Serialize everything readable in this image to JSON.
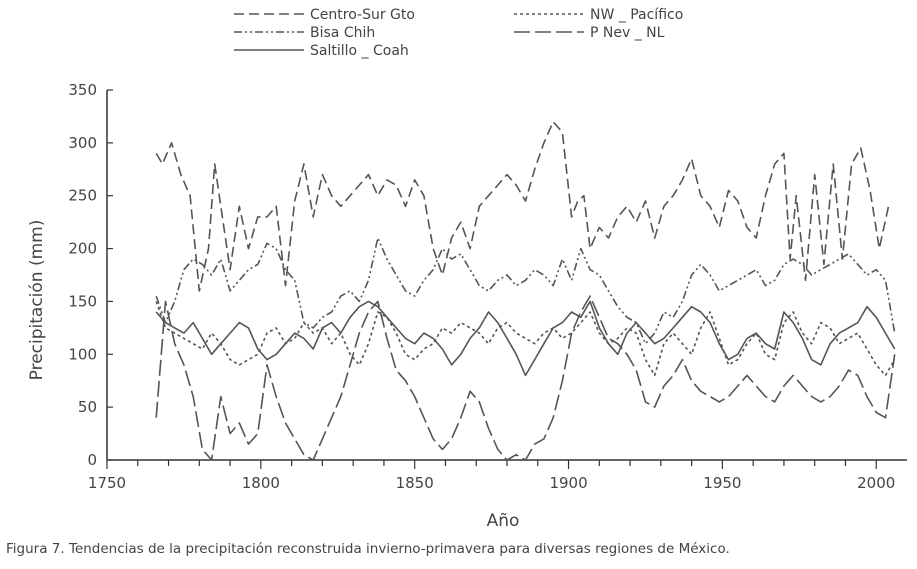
{
  "chart_data": {
    "type": "line",
    "xlabel": "Año",
    "ylabel": "Precipitación (mm)",
    "xlim": [
      1750,
      2010
    ],
    "ylim": [
      0,
      350
    ],
    "xticks": [
      1750,
      1800,
      1850,
      1900,
      1950,
      2000
    ],
    "yticks": [
      0,
      50,
      100,
      150,
      200,
      250,
      300,
      350
    ],
    "legend_position": "top",
    "grid": false,
    "series": [
      {
        "name": "Centro-Sur Gto",
        "dash": "10,5",
        "x": [
          1766,
          1768,
          1771,
          1774,
          1777,
          1780,
          1783,
          1785,
          1787,
          1790,
          1793,
          1796,
          1799,
          1802,
          1805,
          1808,
          1811,
          1814,
          1817,
          1820,
          1823,
          1826,
          1829,
          1832,
          1835,
          1838,
          1841,
          1844,
          1847,
          1850,
          1853,
          1856,
          1859,
          1862,
          1865,
          1868,
          1871,
          1874,
          1877,
          1880,
          1883,
          1886,
          1889,
          1892,
          1895,
          1898,
          1901,
          1903,
          1905,
          1907,
          1910,
          1913,
          1916,
          1919,
          1922,
          1925,
          1928,
          1931,
          1934,
          1937,
          1940,
          1943,
          1946,
          1949,
          1952,
          1955,
          1958,
          1961,
          1964,
          1967,
          1970,
          1972,
          1974,
          1977,
          1980,
          1983,
          1986,
          1989,
          1992,
          1995,
          1998,
          2001,
          2004
        ],
        "values": [
          290,
          280,
          300,
          270,
          250,
          160,
          200,
          280,
          240,
          180,
          240,
          200,
          230,
          230,
          240,
          165,
          245,
          280,
          230,
          270,
          250,
          240,
          250,
          260,
          270,
          250,
          265,
          260,
          240,
          265,
          250,
          200,
          175,
          210,
          225,
          200,
          240,
          250,
          260,
          270,
          260,
          245,
          275,
          300,
          320,
          310,
          230,
          245,
          250,
          200,
          220,
          210,
          230,
          240,
          225,
          245,
          210,
          240,
          250,
          265,
          285,
          250,
          240,
          220,
          255,
          245,
          220,
          210,
          250,
          280,
          290,
          190,
          250,
          170,
          270,
          185,
          280,
          190,
          280,
          295,
          255,
          200,
          240
        ]
      },
      {
        "name": "NW _ Pacífico",
        "dash": "3,3",
        "x": [
          1766,
          1769,
          1772,
          1775,
          1778,
          1781,
          1784,
          1787,
          1790,
          1793,
          1796,
          1799,
          1802,
          1805,
          1808,
          1811,
          1814,
          1817,
          1820,
          1823,
          1826,
          1829,
          1832,
          1835,
          1838,
          1841,
          1844,
          1847,
          1850,
          1853,
          1856,
          1859,
          1862,
          1865,
          1868,
          1871,
          1874,
          1877,
          1880,
          1883,
          1886,
          1889,
          1892,
          1895,
          1898,
          1901,
          1904,
          1907,
          1910,
          1913,
          1916,
          1919,
          1922,
          1925,
          1928,
          1931,
          1934,
          1937,
          1940,
          1943,
          1946,
          1949,
          1952,
          1955,
          1958,
          1961,
          1964,
          1967,
          1970,
          1973,
          1976,
          1979,
          1982,
          1985,
          1988,
          1991,
          1994,
          1997,
          2000,
          2003,
          2006
        ],
        "values": [
          150,
          125,
          120,
          115,
          110,
          105,
          120,
          110,
          95,
          90,
          95,
          100,
          120,
          125,
          110,
          115,
          130,
          120,
          125,
          110,
          120,
          100,
          90,
          110,
          140,
          135,
          120,
          100,
          95,
          105,
          110,
          125,
          120,
          130,
          125,
          120,
          110,
          125,
          130,
          120,
          115,
          110,
          120,
          125,
          115,
          120,
          130,
          140,
          120,
          110,
          115,
          125,
          120,
          95,
          80,
          110,
          120,
          110,
          100,
          125,
          140,
          115,
          90,
          95,
          110,
          120,
          100,
          95,
          130,
          140,
          120,
          110,
          130,
          125,
          110,
          115,
          120,
          105,
          90,
          80,
          95
        ]
      },
      {
        "name": "Bisa Chih",
        "dash": "8,3,2,3,2,3",
        "x": [
          1766,
          1769,
          1772,
          1775,
          1778,
          1781,
          1784,
          1787,
          1790,
          1793,
          1796,
          1799,
          1802,
          1805,
          1808,
          1811,
          1814,
          1817,
          1820,
          1823,
          1826,
          1829,
          1832,
          1835,
          1838,
          1841,
          1844,
          1847,
          1850,
          1853,
          1856,
          1859,
          1862,
          1865,
          1868,
          1871,
          1874,
          1877,
          1880,
          1883,
          1886,
          1889,
          1892,
          1895,
          1898,
          1901,
          1904,
          1907,
          1910,
          1913,
          1916,
          1919,
          1922,
          1925,
          1928,
          1931,
          1934,
          1937,
          1940,
          1943,
          1946,
          1949,
          1952,
          1955,
          1958,
          1961,
          1964,
          1967,
          1970,
          1973,
          1976,
          1979,
          1982,
          1985,
          1988,
          1991,
          1994,
          1997,
          2000,
          2003,
          2006
        ],
        "values": [
          155,
          130,
          150,
          180,
          190,
          185,
          175,
          190,
          160,
          170,
          180,
          185,
          205,
          200,
          180,
          170,
          130,
          125,
          135,
          140,
          155,
          160,
          150,
          170,
          210,
          190,
          175,
          160,
          155,
          170,
          180,
          200,
          190,
          195,
          180,
          165,
          160,
          170,
          175,
          165,
          170,
          180,
          175,
          165,
          190,
          170,
          200,
          180,
          175,
          160,
          145,
          135,
          130,
          110,
          120,
          140,
          135,
          150,
          175,
          185,
          175,
          160,
          165,
          170,
          175,
          180,
          165,
          170,
          185,
          190,
          185,
          175,
          180,
          185,
          190,
          195,
          185,
          175,
          180,
          170,
          120
        ]
      },
      {
        "name": "P Nev _ NL",
        "dash": "16,5",
        "x": [
          1766,
          1769,
          1772,
          1775,
          1778,
          1781,
          1784,
          1787,
          1790,
          1793,
          1796,
          1799,
          1802,
          1805,
          1808,
          1811,
          1814,
          1817,
          1820,
          1823,
          1826,
          1829,
          1832,
          1835,
          1838,
          1841,
          1844,
          1847,
          1850,
          1853,
          1856,
          1859,
          1862,
          1865,
          1868,
          1871,
          1874,
          1877,
          1880,
          1883,
          1886,
          1889,
          1892,
          1895,
          1898,
          1901,
          1904,
          1907,
          1910,
          1913,
          1916,
          1919,
          1922,
          1925,
          1928,
          1931,
          1934,
          1937,
          1940,
          1943,
          1946,
          1949,
          1952,
          1955,
          1958,
          1961,
          1964,
          1967,
          1970,
          1973,
          1976,
          1979,
          1982,
          1985,
          1988,
          1991,
          1994,
          1997,
          2000,
          2003,
          2006
        ],
        "values": [
          40,
          150,
          110,
          90,
          60,
          10,
          0,
          60,
          25,
          35,
          15,
          25,
          90,
          60,
          35,
          20,
          5,
          0,
          20,
          40,
          60,
          90,
          120,
          140,
          150,
          115,
          85,
          75,
          60,
          40,
          20,
          10,
          20,
          40,
          65,
          55,
          30,
          10,
          0,
          5,
          0,
          15,
          20,
          40,
          75,
          120,
          140,
          155,
          135,
          115,
          110,
          100,
          85,
          55,
          50,
          70,
          80,
          95,
          75,
          65,
          60,
          55,
          60,
          70,
          80,
          70,
          60,
          55,
          70,
          80,
          70,
          60,
          55,
          60,
          70,
          85,
          80,
          60,
          45,
          40,
          100
        ]
      },
      {
        "name": "Saltillo _ Coah",
        "dash": "",
        "x": [
          1766,
          1769,
          1772,
          1775,
          1778,
          1781,
          1784,
          1787,
          1790,
          1793,
          1796,
          1799,
          1802,
          1805,
          1808,
          1811,
          1814,
          1817,
          1820,
          1823,
          1826,
          1829,
          1832,
          1835,
          1838,
          1841,
          1844,
          1847,
          1850,
          1853,
          1856,
          1859,
          1862,
          1865,
          1868,
          1871,
          1874,
          1877,
          1880,
          1883,
          1886,
          1889,
          1892,
          1895,
          1898,
          1901,
          1904,
          1907,
          1910,
          1913,
          1916,
          1919,
          1922,
          1925,
          1928,
          1931,
          1934,
          1937,
          1940,
          1943,
          1946,
          1949,
          1952,
          1955,
          1958,
          1961,
          1964,
          1967,
          1970,
          1973,
          1976,
          1979,
          1982,
          1985,
          1988,
          1991,
          1994,
          1997,
          2000,
          2003,
          2006
        ],
        "values": [
          140,
          130,
          125,
          120,
          130,
          115,
          100,
          110,
          120,
          130,
          125,
          105,
          95,
          100,
          110,
          120,
          115,
          105,
          125,
          130,
          120,
          135,
          145,
          150,
          145,
          135,
          125,
          115,
          110,
          120,
          115,
          105,
          90,
          100,
          115,
          125,
          140,
          130,
          115,
          100,
          80,
          95,
          110,
          125,
          130,
          140,
          135,
          150,
          125,
          110,
          100,
          120,
          130,
          120,
          110,
          115,
          125,
          135,
          145,
          140,
          130,
          110,
          95,
          100,
          115,
          120,
          110,
          105,
          140,
          130,
          115,
          95,
          90,
          110,
          120,
          125,
          130,
          145,
          135,
          120,
          105
        ]
      }
    ]
  },
  "caption": "Figura 7. Tendencias de la precipitación reconstruida invierno-primavera para diversas regiones de México."
}
